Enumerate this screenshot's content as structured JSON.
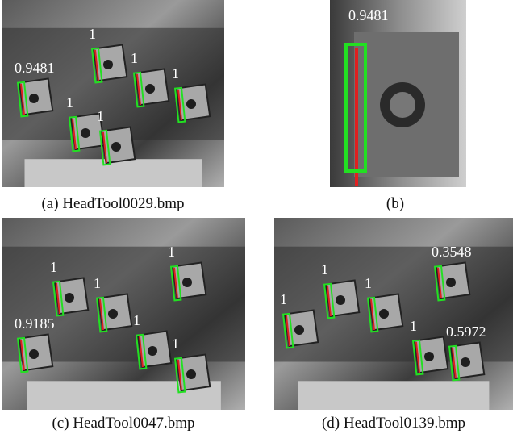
{
  "panels": [
    {
      "caption": "(a) HeadTool0029.bmp",
      "scores": [
        1,
        0.9481,
        1,
        1,
        1,
        1
      ]
    },
    {
      "caption": "(b)",
      "scores": [
        0.9481
      ]
    },
    {
      "caption": "(c) HeadTool0047.bmp",
      "scores": [
        1,
        1,
        1,
        0.9185,
        1,
        1
      ]
    },
    {
      "caption": "(d) HeadTool0139.bmp",
      "scores": [
        1,
        0.3548,
        1,
        1,
        1,
        0.5972
      ]
    }
  ]
}
